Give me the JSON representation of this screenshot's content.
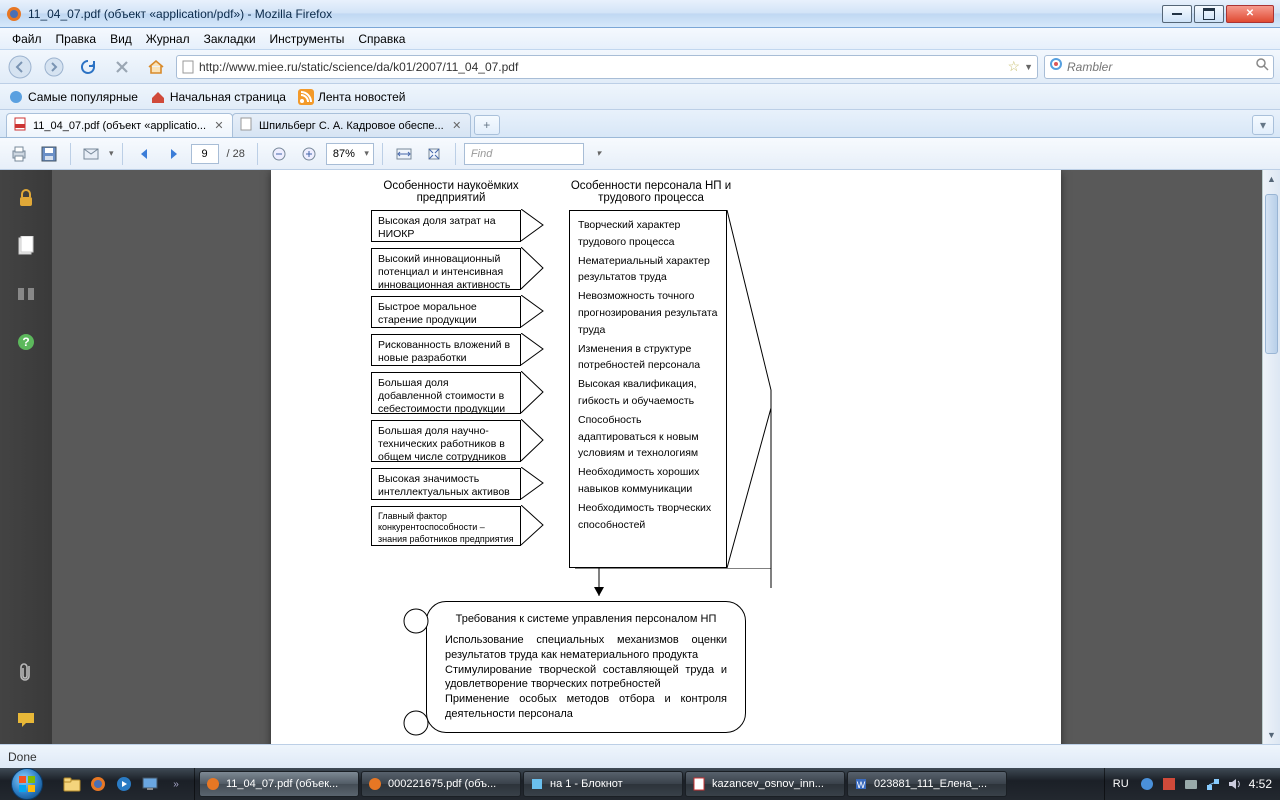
{
  "window": {
    "title": "11_04_07.pdf (объект «application/pdf») - Mozilla Firefox"
  },
  "menu": {
    "file": "Файл",
    "edit": "Правка",
    "view": "Вид",
    "history": "Журнал",
    "bookmarks": "Закладки",
    "tools": "Инструменты",
    "help": "Справка"
  },
  "url": {
    "value": "http://www.miee.ru/static/science/da/k01/2007/11_04_07.pdf"
  },
  "search": {
    "placeholder": "Rambler"
  },
  "bmbar": {
    "popular": "Самые популярные",
    "start": "Начальная страница",
    "news": "Лента новостей"
  },
  "tabs": {
    "t1": "11_04_07.pdf (объект «applicatio...",
    "t2": "Шпильберг С. А. Кадровое обеспе..."
  },
  "pdf": {
    "page": "9",
    "pages": "/ 28",
    "zoom": "87%",
    "find": "Find"
  },
  "status": {
    "text": "Done"
  },
  "diagram": {
    "leftHeader": "Особенности наукоёмких предприятий",
    "rightHeader": "Особенности персонала НП и трудового процесса",
    "leftBoxes": [
      "Высокая доля затрат на НИОКР",
      "Высокий инновационный потенциал и интенсивная инновационная активность",
      "Быстрое моральное старение продукции",
      "Рискованность вложений в новые разработки",
      "Большая доля добавленной стоимости в себестоимости продукции",
      "Большая доля научно-технических работников в общем числе сотрудников",
      "Высокая значимость интеллектуальных активов",
      "Главный фактор конкурентоспособности – знания работников предприятия"
    ],
    "rightLines": [
      "Творческий характер трудового процесса",
      "Нематериальный характер результатов труда",
      "Невозможность точного прогнозирования результата труда",
      "Изменения в структуре потребностей персонала",
      "Высокая квалификация, гибкость и обучаемость",
      "Способность адаптироваться к новым условиям и технологиям",
      "Необходимость хороших навыков коммуникации",
      "Необходимость творческих способностей"
    ],
    "bottomTitle": "Требования к системе управления персоналом НП",
    "bottomLines": [
      "Использование специальных механизмов оценки результатов труда как нематериального продукта",
      "Стимулирование творческой составляющей труда и удовлетворение творческих потребностей",
      "Применение особых методов отбора и   контроля деятельности персонала"
    ]
  },
  "taskbar": {
    "t1": "11_04_07.pdf (объек...",
    "t2": "000221675.pdf (объ...",
    "t3": "на 1 - Блокнот",
    "t4": "kazancev_osnov_inn...",
    "t5": "023881_111_Елена_...",
    "lang": "RU",
    "time": "4:52"
  }
}
